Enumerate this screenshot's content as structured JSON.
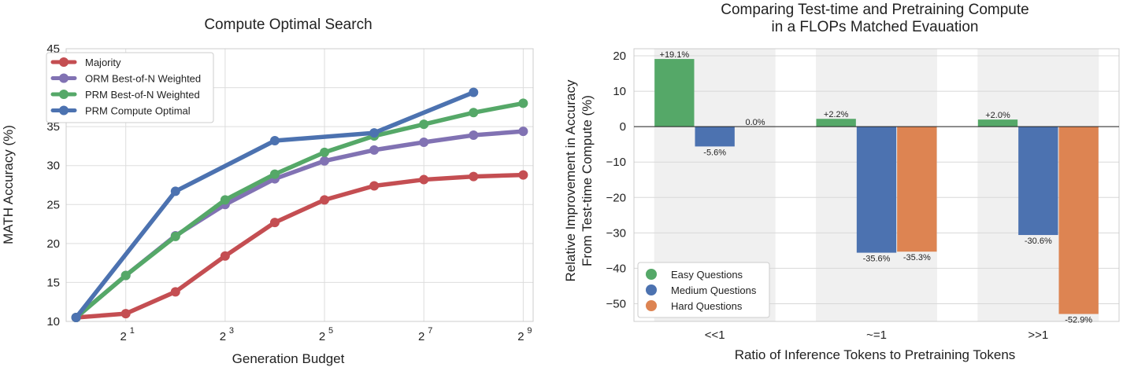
{
  "chart_data": [
    {
      "type": "line",
      "title": "Compute Optimal Search",
      "xlabel": "Generation Budget",
      "ylabel": "MATH Accuracy (%)",
      "x_scale": "log2",
      "x": [
        1,
        2,
        4,
        8,
        16,
        32,
        64,
        128,
        256,
        512
      ],
      "x_ticks": [
        {
          "value": 2,
          "base": "2",
          "exp": "1"
        },
        {
          "value": 8,
          "base": "2",
          "exp": "3"
        },
        {
          "value": 32,
          "base": "2",
          "exp": "5"
        },
        {
          "value": 128,
          "base": "2",
          "exp": "7"
        },
        {
          "value": 512,
          "base": "2",
          "exp": "9"
        }
      ],
      "ylim": [
        10,
        45
      ],
      "y_ticks": [
        "10",
        "15",
        "20",
        "25",
        "30",
        "35",
        "40",
        "45"
      ],
      "grid": true,
      "legend_position": "top-left",
      "series": [
        {
          "name": "Majority",
          "color": "#c44e52",
          "x": [
            1,
            2,
            4,
            8,
            16,
            32,
            64,
            128,
            256,
            512
          ],
          "values": [
            10.5,
            11.0,
            13.8,
            18.4,
            22.7,
            25.6,
            27.4,
            28.2,
            28.6,
            28.8
          ]
        },
        {
          "name": "ORM Best-of-N Weighted",
          "color": "#8172b3",
          "x": [
            1,
            2,
            4,
            8,
            16,
            32,
            64,
            128,
            256,
            512
          ],
          "values": [
            10.5,
            15.9,
            21.0,
            25.0,
            28.3,
            30.6,
            32.0,
            33.0,
            33.9,
            34.4
          ]
        },
        {
          "name": "PRM Best-of-N Weighted",
          "color": "#55a868",
          "x": [
            1,
            2,
            4,
            8,
            16,
            32,
            64,
            128,
            256,
            512
          ],
          "values": [
            10.5,
            15.9,
            20.9,
            25.6,
            28.9,
            31.7,
            33.8,
            35.3,
            36.8,
            38.0
          ]
        },
        {
          "name": "PRM Compute Optimal",
          "color": "#4c72b0",
          "x": [
            1,
            4,
            16,
            64,
            256
          ],
          "values": [
            10.5,
            26.7,
            33.2,
            34.2,
            39.4
          ]
        }
      ]
    },
    {
      "type": "bar",
      "title_lines": [
        "Comparing Test-time and Pretraining Compute",
        "in a FLOPs Matched Evauation"
      ],
      "xlabel": "Ratio of Inference Tokens to Pretraining Tokens",
      "ylabel_lines": [
        "Relative Improvement in Accuracy",
        "From Test-time Compute (%)"
      ],
      "categories": [
        "<<1",
        "~=1",
        ">>1"
      ],
      "ylim": [
        -55,
        22
      ],
      "y_ticks": [
        {
          "value": 20,
          "label": "20"
        },
        {
          "value": 10,
          "label": "10"
        },
        {
          "value": 0,
          "label": "0"
        },
        {
          "value": -10,
          "label": "−10"
        },
        {
          "value": -20,
          "label": "−20"
        },
        {
          "value": -30,
          "label": "−30"
        },
        {
          "value": -40,
          "label": "−40"
        },
        {
          "value": -50,
          "label": "−50"
        }
      ],
      "grid": true,
      "legend_position": "bottom-left",
      "series": [
        {
          "name": "Easy Questions",
          "color": "#55a868",
          "values": [
            19.1,
            2.2,
            2.0
          ],
          "labels": [
            "+19.1%",
            "+2.2%",
            "+2.0%"
          ]
        },
        {
          "name": "Medium Questions",
          "color": "#4c72b0",
          "values": [
            -5.6,
            -35.6,
            -30.6
          ],
          "labels": [
            "-5.6%",
            "-35.6%",
            "-30.6%"
          ]
        },
        {
          "name": "Hard Questions",
          "color": "#dd8452",
          "values": [
            0.0,
            -35.3,
            -52.9
          ],
          "labels": [
            "0.0%",
            "-35.3%",
            "-52.9%"
          ]
        }
      ]
    }
  ]
}
